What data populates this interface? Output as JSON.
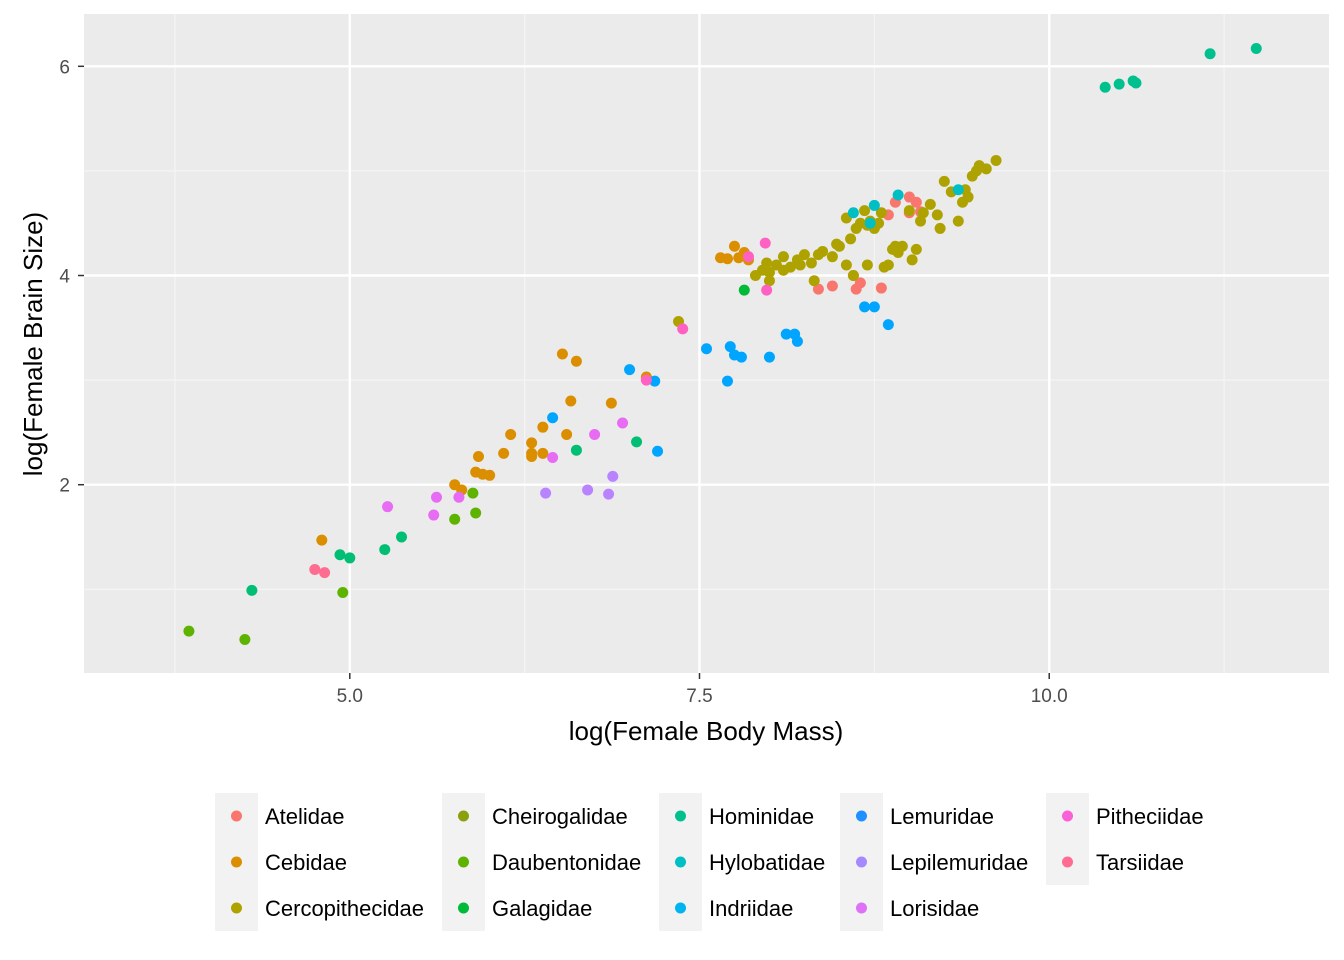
{
  "chart_data": {
    "type": "scatter",
    "xlabel": "log(Female Body Mass)",
    "ylabel": "log(Female Brain Size)",
    "xlim": [
      3.1,
      12.0
    ],
    "ylim": [
      0.2,
      6.5
    ],
    "x_ticks": [
      5.0,
      7.5,
      10.0
    ],
    "x_tick_labels": [
      "5.0",
      "7.5",
      "10.0"
    ],
    "y_ticks": [
      2,
      4,
      6
    ],
    "y_tick_labels": [
      "2",
      "4",
      "6"
    ],
    "grid": true,
    "legend_position": "bottom",
    "series": [
      {
        "name": "Atelidae",
        "color": "#F8766D",
        "points": [
          [
            8.62,
            3.87
          ],
          [
            8.9,
            4.7
          ],
          [
            8.85,
            4.58
          ],
          [
            9.0,
            4.75
          ],
          [
            9.05,
            4.7
          ],
          [
            9.08,
            4.61
          ],
          [
            8.6,
            4.0
          ],
          [
            8.35,
            3.87
          ],
          [
            8.45,
            3.9
          ],
          [
            8.8,
            3.88
          ],
          [
            8.65,
            3.93
          ],
          [
            9.0,
            4.6
          ]
        ]
      },
      {
        "name": "Cebidae",
        "color": "#DB8E00",
        "points": [
          [
            4.8,
            1.47
          ],
          [
            5.75,
            2.0
          ],
          [
            5.8,
            1.95
          ],
          [
            5.9,
            2.12
          ],
          [
            5.95,
            2.1
          ],
          [
            6.0,
            2.09
          ],
          [
            5.92,
            2.27
          ],
          [
            6.1,
            2.3
          ],
          [
            6.15,
            2.48
          ],
          [
            6.3,
            2.4
          ],
          [
            6.3,
            2.3
          ],
          [
            6.3,
            2.27
          ],
          [
            6.38,
            2.3
          ],
          [
            6.38,
            2.55
          ],
          [
            6.55,
            2.48
          ],
          [
            6.58,
            2.8
          ],
          [
            6.52,
            3.25
          ],
          [
            6.62,
            3.18
          ],
          [
            6.87,
            2.78
          ],
          [
            7.12,
            3.03
          ],
          [
            7.65,
            4.17
          ],
          [
            7.7,
            4.16
          ],
          [
            7.75,
            4.28
          ],
          [
            7.82,
            4.22
          ],
          [
            7.78,
            4.17
          ],
          [
            7.85,
            4.15
          ]
        ]
      },
      {
        "name": "Cercopithecidae",
        "color": "#AEA200",
        "points": [
          [
            7.35,
            3.56
          ],
          [
            7.9,
            4.0
          ],
          [
            7.95,
            4.05
          ],
          [
            7.98,
            4.12
          ],
          [
            8.0,
            4.03
          ],
          [
            8.05,
            4.1
          ],
          [
            8.1,
            4.18
          ],
          [
            8.15,
            4.08
          ],
          [
            8.2,
            4.15
          ],
          [
            8.22,
            4.1
          ],
          [
            8.25,
            4.2
          ],
          [
            8.3,
            4.12
          ],
          [
            8.35,
            4.2
          ],
          [
            8.38,
            4.23
          ],
          [
            8.45,
            4.18
          ],
          [
            8.5,
            4.28
          ],
          [
            8.55,
            4.1
          ],
          [
            8.55,
            4.55
          ],
          [
            8.6,
            4.0
          ],
          [
            8.62,
            4.45
          ],
          [
            8.65,
            4.5
          ],
          [
            8.68,
            4.62
          ],
          [
            8.7,
            4.48
          ],
          [
            8.72,
            4.52
          ],
          [
            8.75,
            4.45
          ],
          [
            8.78,
            4.5
          ],
          [
            8.8,
            4.6
          ],
          [
            8.82,
            4.08
          ],
          [
            8.85,
            4.1
          ],
          [
            8.88,
            4.25
          ],
          [
            8.9,
            4.28
          ],
          [
            8.92,
            4.22
          ],
          [
            8.95,
            4.28
          ],
          [
            9.0,
            4.62
          ],
          [
            9.02,
            4.15
          ],
          [
            9.05,
            4.25
          ],
          [
            9.08,
            4.52
          ],
          [
            9.1,
            4.6
          ],
          [
            9.15,
            4.68
          ],
          [
            9.2,
            4.58
          ],
          [
            9.22,
            4.45
          ],
          [
            9.25,
            4.9
          ],
          [
            9.3,
            4.8
          ],
          [
            9.35,
            4.52
          ],
          [
            9.38,
            4.7
          ],
          [
            9.4,
            4.82
          ],
          [
            9.42,
            4.75
          ],
          [
            9.45,
            4.95
          ],
          [
            9.5,
            5.05
          ],
          [
            9.48,
            5.0
          ],
          [
            9.55,
            5.02
          ],
          [
            9.62,
            5.1
          ],
          [
            8.7,
            4.1
          ],
          [
            8.0,
            3.95
          ],
          [
            8.1,
            4.05
          ],
          [
            8.32,
            3.95
          ],
          [
            8.48,
            4.3
          ],
          [
            8.58,
            4.35
          ]
        ]
      },
      {
        "name": "Cheirogalidae",
        "color": "#5EB300",
        "points": [
          [
            3.85,
            0.6
          ],
          [
            4.25,
            0.52
          ],
          [
            4.95,
            0.97
          ],
          [
            5.75,
            1.67
          ],
          [
            5.88,
            1.92
          ],
          [
            5.9,
            1.73
          ]
        ]
      },
      {
        "name": "Daubentoniidae",
        "color": "#00BA38",
        "points": [
          [
            7.82,
            3.86
          ]
        ]
      },
      {
        "name": "Galagidae",
        "color": "#00BF74",
        "points": [
          [
            4.3,
            0.99
          ],
          [
            4.93,
            1.33
          ],
          [
            5.0,
            1.3
          ],
          [
            5.25,
            1.38
          ],
          [
            5.37,
            1.5
          ],
          [
            6.62,
            2.33
          ],
          [
            7.05,
            2.41
          ]
        ]
      },
      {
        "name": "Hominidae",
        "color": "#00C08D",
        "points": [
          [
            10.4,
            5.8
          ],
          [
            10.5,
            5.83
          ],
          [
            10.6,
            5.86
          ],
          [
            10.62,
            5.84
          ],
          [
            11.15,
            6.12
          ],
          [
            11.48,
            6.17
          ]
        ]
      },
      {
        "name": "Hylobatidae",
        "color": "#00BFC4",
        "points": [
          [
            8.6,
            4.6
          ],
          [
            8.72,
            4.5
          ],
          [
            8.75,
            4.67
          ],
          [
            8.92,
            4.77
          ],
          [
            9.35,
            4.82
          ]
        ]
      },
      {
        "name": "Indriidae",
        "color": "#00A5FF",
        "points": [
          [
            7.2,
            2.32
          ],
          [
            7.7,
            2.99
          ],
          [
            7.75,
            3.24
          ],
          [
            7.8,
            3.22
          ],
          [
            8.0,
            3.22
          ],
          [
            8.2,
            3.37
          ],
          [
            8.68,
            3.7
          ],
          [
            8.75,
            3.7
          ],
          [
            8.85,
            3.53
          ]
        ]
      },
      {
        "name": "Lemuridae",
        "color": "#00A5FF",
        "points": [
          [
            6.45,
            2.64
          ],
          [
            7.0,
            3.1
          ],
          [
            7.18,
            2.99
          ],
          [
            7.55,
            3.3
          ],
          [
            7.72,
            3.32
          ],
          [
            8.12,
            3.44
          ],
          [
            8.18,
            3.44
          ]
        ]
      },
      {
        "name": "Lepilemuridae",
        "color": "#B983FF",
        "points": [
          [
            6.4,
            1.92
          ],
          [
            6.7,
            1.95
          ],
          [
            6.85,
            1.91
          ],
          [
            6.88,
            2.08
          ]
        ]
      },
      {
        "name": "Lorisidae",
        "color": "#E76BF3",
        "points": [
          [
            5.27,
            1.79
          ],
          [
            5.6,
            1.71
          ],
          [
            5.62,
            1.88
          ],
          [
            5.78,
            1.88
          ],
          [
            6.45,
            2.26
          ],
          [
            6.75,
            2.48
          ],
          [
            6.95,
            2.59
          ]
        ]
      },
      {
        "name": "Pitheciidae",
        "color": "#FF61C3",
        "points": [
          [
            7.12,
            3.0
          ],
          [
            7.38,
            3.49
          ],
          [
            7.97,
            4.31
          ],
          [
            7.98,
            3.86
          ],
          [
            7.85,
            4.18
          ]
        ]
      },
      {
        "name": "Tarsiidae",
        "color": "#FF6C91",
        "points": [
          [
            4.75,
            1.19
          ],
          [
            4.82,
            1.16
          ]
        ]
      }
    ],
    "legend": [
      {
        "name": "Atelidae",
        "color": "#F8766D"
      },
      {
        "name": "Cebidae",
        "color": "#DB8E00"
      },
      {
        "name": "Cercopithecidae",
        "color": "#AEA200"
      },
      {
        "name": "Cheirogalidae",
        "color": "#8C9F0C"
      },
      {
        "name": "Daubentonidae",
        "color": "#5EB300"
      },
      {
        "name": "Galagidae",
        "color": "#00BA38"
      },
      {
        "name": "Hominidae",
        "color": "#00C08D"
      },
      {
        "name": "Hylobatidae",
        "color": "#00BFC4"
      },
      {
        "name": "Indriidae",
        "color": "#00B4EF"
      },
      {
        "name": "Lemuridae",
        "color": "#1E90FF"
      },
      {
        "name": "Lepilemuridae",
        "color": "#A58AFF"
      },
      {
        "name": "Lorisidae",
        "color": "#DF70F8"
      },
      {
        "name": "Pitheciidae",
        "color": "#FB61D7"
      },
      {
        "name": "Tarsiidae",
        "color": "#FF6C91"
      }
    ]
  }
}
